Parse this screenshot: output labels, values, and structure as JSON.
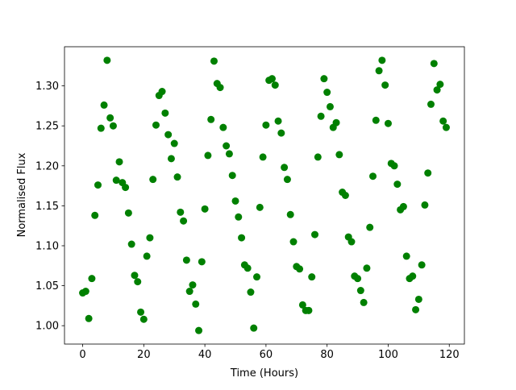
{
  "chart_data": {
    "type": "scatter",
    "xlabel": "Time (Hours)",
    "ylabel": "Normalised Flux",
    "color": "#008000",
    "xlim": [
      -5.95,
      124.95
    ],
    "ylim": [
      0.977,
      1.349
    ],
    "xticks": [
      0,
      20,
      40,
      60,
      80,
      100,
      120
    ],
    "yticks": [
      {
        "value": 1.0,
        "label": "1.00"
      },
      {
        "value": 1.05,
        "label": "1.05"
      },
      {
        "value": 1.1,
        "label": "1.10"
      },
      {
        "value": 1.15,
        "label": "1.15"
      },
      {
        "value": 1.2,
        "label": "1.20"
      },
      {
        "value": 1.25,
        "label": "1.25"
      },
      {
        "value": 1.3,
        "label": "1.30"
      }
    ],
    "x": [
      0,
      1,
      2,
      3,
      4,
      5,
      6,
      7,
      8,
      9,
      10,
      11,
      12,
      13,
      14,
      15,
      16,
      17,
      18,
      19,
      20,
      21,
      22,
      23,
      24,
      25,
      26,
      27,
      28,
      29,
      30,
      31,
      32,
      33,
      34,
      35,
      36,
      37,
      38,
      39,
      40,
      41,
      42,
      43,
      44,
      45,
      46,
      47,
      48,
      49,
      50,
      51,
      52,
      53,
      54,
      55,
      56,
      57,
      58,
      59,
      60,
      61,
      62,
      63,
      64,
      65,
      66,
      67,
      68,
      69,
      70,
      71,
      72,
      73,
      74,
      75,
      76,
      77,
      78,
      79,
      80,
      81,
      82,
      83,
      84,
      85,
      86,
      87,
      88,
      89,
      90,
      91,
      92,
      93,
      94,
      95,
      96,
      97,
      98,
      99,
      100,
      101,
      102,
      103,
      104,
      105,
      106,
      107,
      108,
      109,
      110,
      111,
      112,
      113,
      114,
      115,
      116,
      117,
      118,
      119
    ],
    "values": [
      1.041,
      1.043,
      1.009,
      1.059,
      1.138,
      1.176,
      1.247,
      1.276,
      1.332,
      1.26,
      1.25,
      1.182,
      1.205,
      1.179,
      1.173,
      1.141,
      1.102,
      1.063,
      1.055,
      1.017,
      1.008,
      1.087,
      1.11,
      1.183,
      1.251,
      1.288,
      1.293,
      1.266,
      1.239,
      1.209,
      1.228,
      1.186,
      1.142,
      1.131,
      1.082,
      1.043,
      1.051,
      1.027,
      0.994,
      1.08,
      1.146,
      1.213,
      1.258,
      1.331,
      1.303,
      1.298,
      1.248,
      1.225,
      1.215,
      1.188,
      1.156,
      1.136,
      1.11,
      1.076,
      1.072,
      1.042,
      0.997,
      1.061,
      1.148,
      1.211,
      1.251,
      1.307,
      1.309,
      1.301,
      1.256,
      1.241,
      1.198,
      1.183,
      1.139,
      1.105,
      1.074,
      1.071,
      1.026,
      1.019,
      1.019,
      1.061,
      1.114,
      1.211,
      1.262,
      1.309,
      1.292,
      1.274,
      1.248,
      1.254,
      1.214,
      1.167,
      1.163,
      1.111,
      1.105,
      1.062,
      1.059,
      1.044,
      1.029,
      1.072,
      1.123,
      1.187,
      1.257,
      1.319,
      1.332,
      1.301,
      1.253,
      1.203,
      1.2,
      1.177,
      1.145,
      1.149,
      1.087,
      1.059,
      1.062,
      1.02,
      1.033,
      1.076,
      1.151,
      1.191,
      1.277,
      1.328,
      1.295,
      1.302,
      1.256,
      1.248
    ]
  }
}
